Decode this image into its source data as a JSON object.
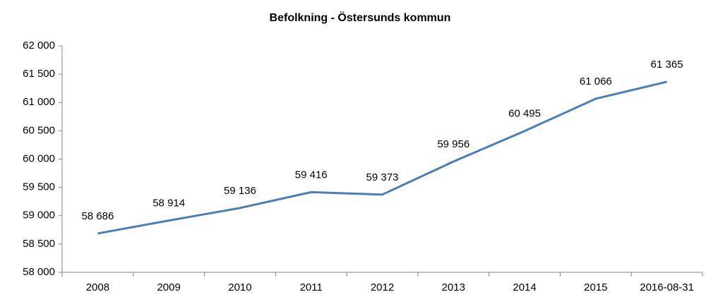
{
  "chart_data": {
    "type": "line",
    "title": "Befolkning - Östersunds kommun",
    "categories": [
      "2008",
      "2009",
      "2010",
      "2011",
      "2012",
      "2013",
      "2014",
      "2015",
      "2016-08-31"
    ],
    "values": [
      58686,
      58914,
      59136,
      59416,
      59373,
      59956,
      60495,
      61066,
      61365
    ],
    "value_labels": [
      "58 686",
      "58 914",
      "59 136",
      "59 416",
      "59 373",
      "59 956",
      "60 495",
      "61 066",
      "61 365"
    ],
    "color": "#4a7ebb",
    "ylim": [
      58000,
      62000
    ],
    "yticks": [
      {
        "value": 58000,
        "label": "58 000"
      },
      {
        "value": 58500,
        "label": "58 500"
      },
      {
        "value": 59000,
        "label": "59 000"
      },
      {
        "value": 59500,
        "label": "59 500"
      },
      {
        "value": 60000,
        "label": "60 000"
      },
      {
        "value": 60500,
        "label": "60 500"
      },
      {
        "value": 61000,
        "label": "61 000"
      },
      {
        "value": 61500,
        "label": "61 500"
      },
      {
        "value": 62000,
        "label": "62 000"
      }
    ],
    "grid": false
  }
}
